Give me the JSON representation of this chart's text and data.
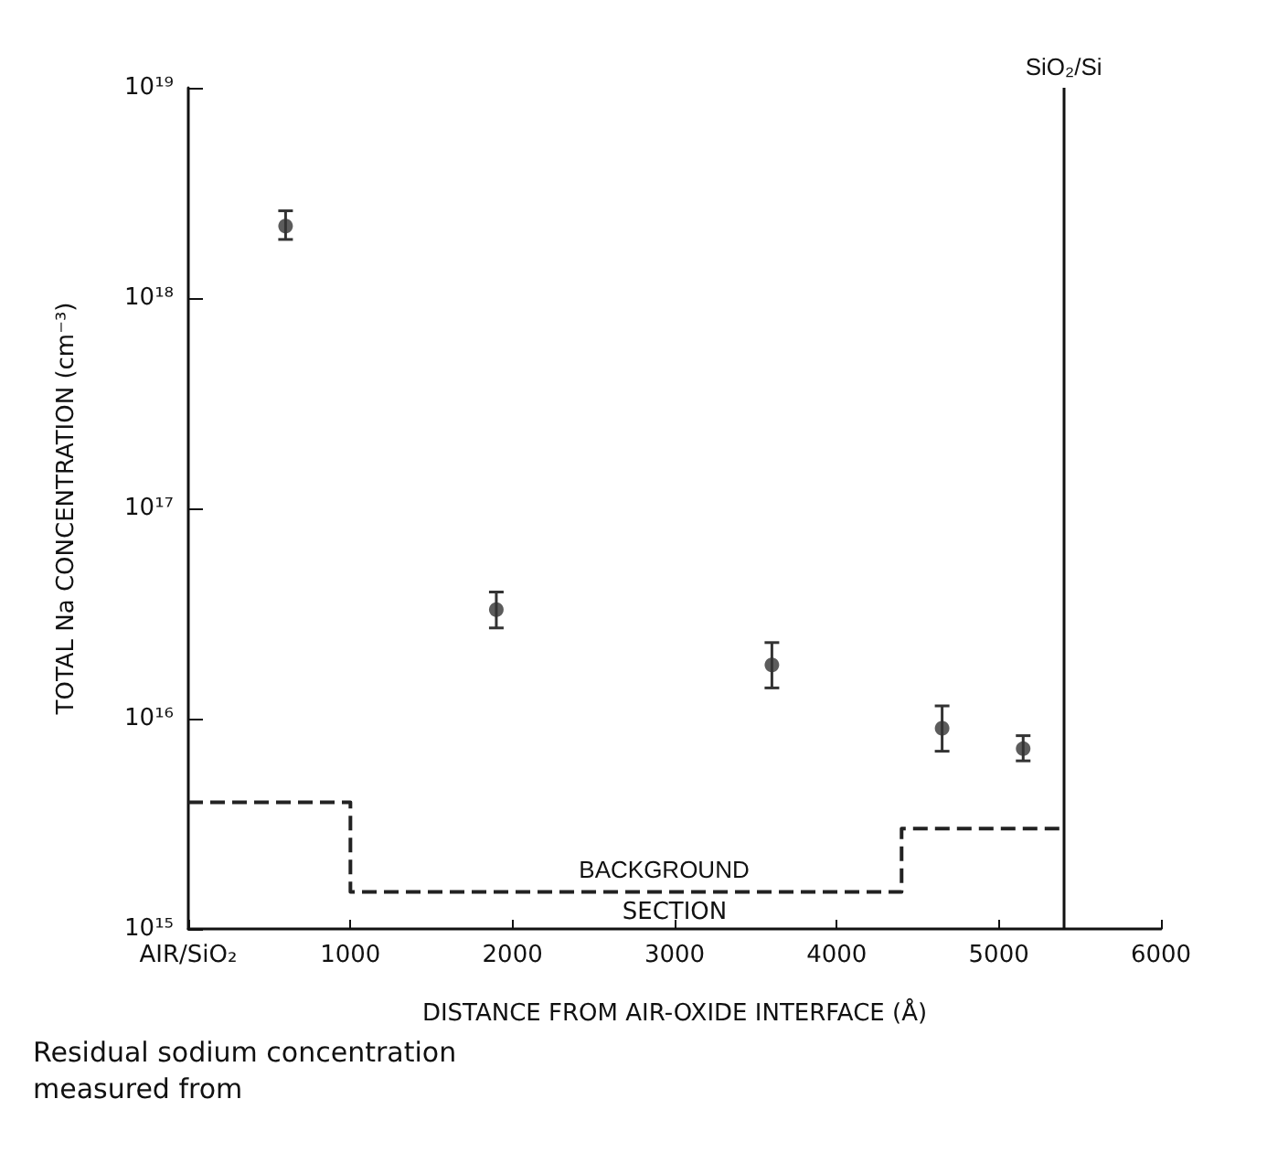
{
  "chart_data": {
    "type": "scatter",
    "xlabel": "DISTANCE FROM AIR-OXIDE INTERFACE (Å)",
    "ylabel": "TOTAL Na CONCENTRATION (cm⁻³)",
    "log": "y",
    "grid": false,
    "xlim": [
      0,
      6000
    ],
    "xticks": [
      {
        "value": 0,
        "label": "AIR/SiO₂"
      },
      1000,
      2000,
      3000,
      4000,
      5000,
      6000
    ],
    "ylim": [
      1000000000000000.0,
      1e+19
    ],
    "yticks": [
      {
        "value": 1000000000000000.0,
        "label": "10¹⁵"
      },
      {
        "value": 1e+16,
        "label": "10¹⁶"
      },
      {
        "value": 1e+17,
        "label": "10¹⁷"
      },
      {
        "value": 1e+18,
        "label": "10¹⁸"
      },
      {
        "value": 1e+19,
        "label": "10¹⁹"
      }
    ],
    "series": [
      {
        "marker": "circle",
        "color": "#333333",
        "x": [
          600,
          1900,
          3600,
          4650,
          5150
        ],
        "values": [
          2.2e+18,
          3.3e+16,
          1.8e+16,
          9000000000000000.0,
          7200000000000000.0
        ],
        "errors": [
          [
            1.9e+18,
            2.6e+18
          ],
          [
            2.7e+16,
            4e+16
          ],
          [
            1.4e+16,
            2.3e+16
          ],
          [
            7000000000000000.0,
            1.15e+16
          ],
          [
            6300000000000000.0,
            8300000000000000.0
          ]
        ]
      },
      {
        "type": "step",
        "marker": "none",
        "name": "BACKGROUND",
        "color": "#222222",
        "line_style": "dashed",
        "x": [
          0,
          1000,
          4400,
          5400
        ],
        "values": [
          4000000000000000.0,
          1500000000000000.0,
          3000000000000000.0,
          3000000000000000.0
        ]
      }
    ],
    "ref_lines": [
      {
        "axis": "x",
        "value": 5400,
        "label": "SiO₂/Si"
      }
    ],
    "annotations": [
      "SECTION",
      "Residual sodium concentration",
      "measured from"
    ]
  }
}
